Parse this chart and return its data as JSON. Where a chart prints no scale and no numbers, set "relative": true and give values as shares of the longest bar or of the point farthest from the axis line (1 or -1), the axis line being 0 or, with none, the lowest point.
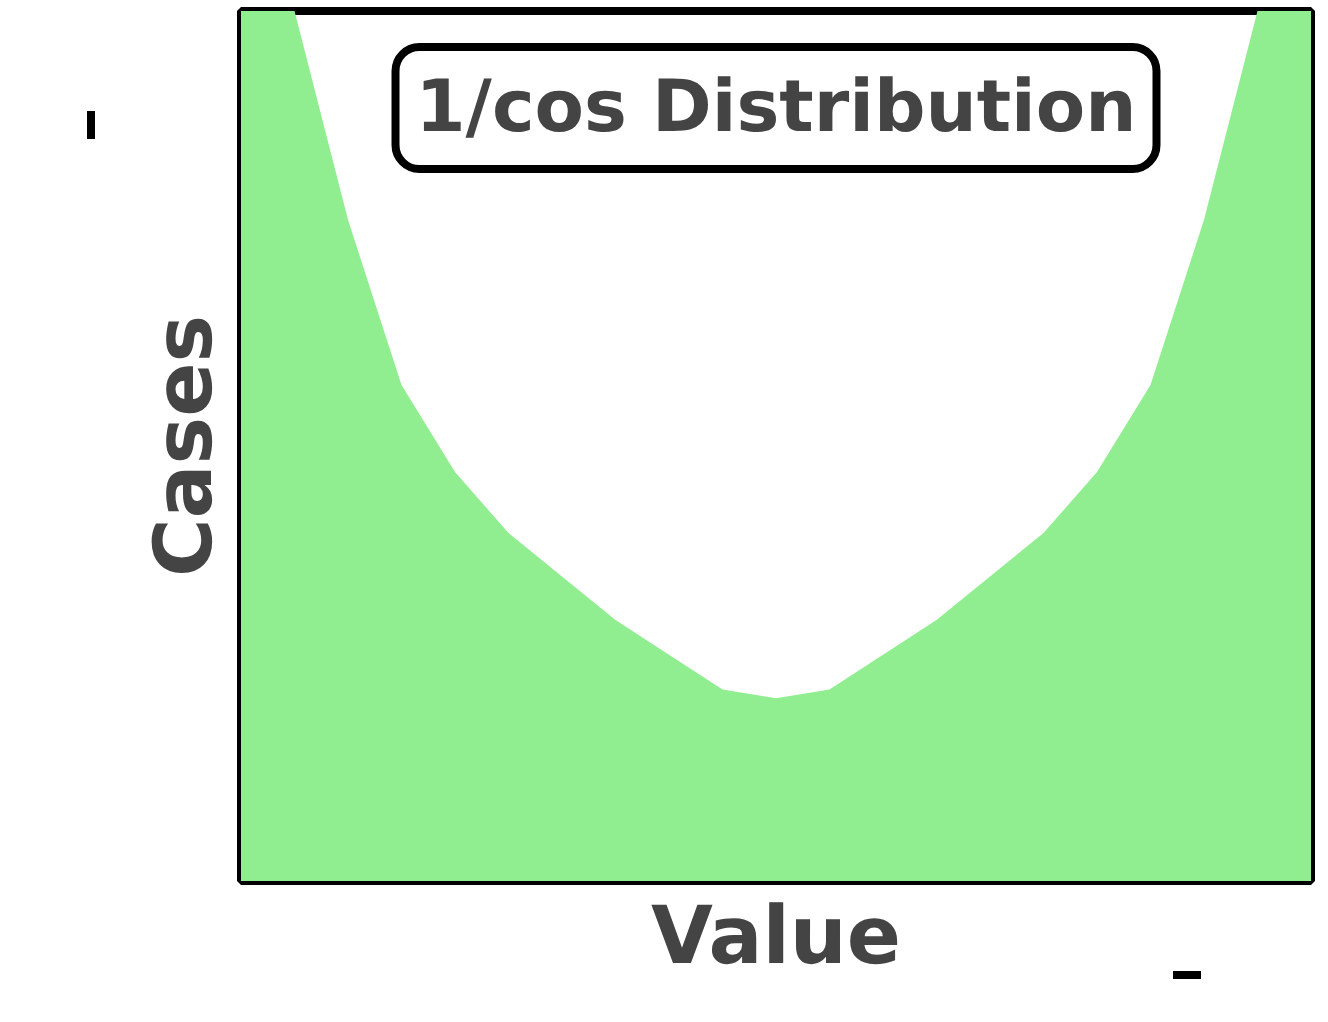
{
  "chart_data": {
    "type": "area",
    "title": "1/cos Distribution",
    "xlabel": "Value",
    "ylabel": "Cases",
    "relative": true,
    "categories": [
      null,
      null,
      null,
      null,
      null,
      null,
      null,
      null,
      null,
      null,
      null,
      null,
      null,
      null,
      null,
      null,
      null,
      null,
      null,
      null,
      null
    ],
    "series": [
      {
        "color": "#90ee90",
        "values": [
          1,
          1,
          0.76,
          0.57,
          0.47,
          0.4,
          0.35,
          0.3,
          0.26,
          0.22,
          0.21,
          0.22,
          0.26,
          0.3,
          0.35,
          0.4,
          0.47,
          0.57,
          0.76,
          1,
          1
        ]
      }
    ]
  }
}
